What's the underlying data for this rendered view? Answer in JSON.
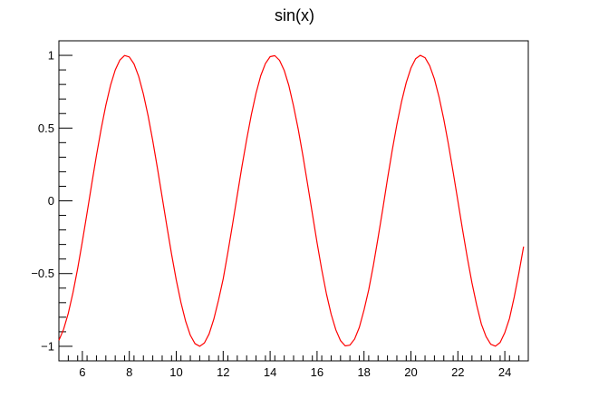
{
  "chart_data": {
    "type": "line",
    "title": "sin(x)",
    "xlabel": "",
    "ylabel": "",
    "xlim": [
      5,
      25
    ],
    "ylim": [
      -1.1,
      1.1
    ],
    "grid": false,
    "function": "sin(x)",
    "x_ticks": [
      6,
      8,
      10,
      12,
      14,
      16,
      18,
      20,
      22,
      24
    ],
    "x_tick_labels": [
      "6",
      "8",
      "10",
      "12",
      "14",
      "16",
      "18",
      "20",
      "22",
      "24"
    ],
    "y_ticks": [
      -1,
      -0.5,
      0,
      0.5,
      1
    ],
    "y_tick_labels": [
      "−1",
      "−0.5",
      "0",
      "0.5",
      "1"
    ],
    "series": [
      {
        "color": "#ff0000",
        "x": [
          5.0,
          5.2,
          5.4,
          5.6,
          5.8,
          6.0,
          6.2,
          6.4,
          6.6,
          6.8,
          7.0,
          7.2,
          7.4,
          7.6,
          7.8,
          8.0,
          8.2,
          8.4,
          8.6,
          8.8,
          9.0,
          9.2,
          9.4,
          9.6,
          9.8,
          10.0,
          10.2,
          10.4,
          10.6,
          10.8,
          11.0,
          11.2,
          11.4,
          11.6,
          11.8,
          12.0,
          12.2,
          12.4,
          12.6,
          12.8,
          13.0,
          13.2,
          13.4,
          13.6,
          13.8,
          14.0,
          14.2,
          14.4,
          14.6,
          14.8,
          15.0,
          15.2,
          15.4,
          15.6,
          15.8,
          16.0,
          16.2,
          16.4,
          16.6,
          16.8,
          17.0,
          17.2,
          17.4,
          17.6,
          17.8,
          18.0,
          18.2,
          18.4,
          18.6,
          18.8,
          19.0,
          19.2,
          19.4,
          19.6,
          19.8,
          20.0,
          20.2,
          20.4,
          20.6,
          20.8,
          21.0,
          21.2,
          21.4,
          21.6,
          21.8,
          22.0,
          22.2,
          22.4,
          22.6,
          22.8,
          23.0,
          23.2,
          23.4,
          23.6,
          23.8,
          24.0,
          24.2,
          24.4,
          24.6,
          24.8
        ],
        "y": [
          -0.959,
          -0.883,
          -0.773,
          -0.631,
          -0.465,
          -0.279,
          -0.083,
          0.117,
          0.312,
          0.494,
          0.657,
          0.794,
          0.899,
          0.968,
          0.999,
          0.989,
          0.941,
          0.855,
          0.734,
          0.585,
          0.412,
          0.223,
          0.025,
          -0.174,
          -0.366,
          -0.544,
          -0.699,
          -0.828,
          -0.924,
          -0.982,
          -1.0,
          -0.977,
          -0.915,
          -0.814,
          -0.683,
          -0.537,
          -0.354,
          -0.161,
          0.039,
          0.237,
          0.421,
          0.592,
          0.74,
          0.86,
          0.944,
          0.991,
          0.998,
          0.966,
          0.897,
          0.791,
          0.65,
          0.49,
          0.307,
          0.111,
          -0.089,
          -0.288,
          -0.474,
          -0.64,
          -0.779,
          -0.887,
          -0.961,
          -0.997,
          -0.992,
          -0.95,
          -0.87,
          -0.751,
          -0.612,
          -0.443,
          -0.253,
          -0.056,
          0.15,
          0.345,
          0.524,
          0.682,
          0.813,
          0.913,
          0.977,
          1.0,
          0.984,
          0.928,
          0.837,
          0.712,
          0.56,
          0.386,
          0.196,
          -0.001,
          -0.199,
          -0.389,
          -0.564,
          -0.716,
          -0.847,
          -0.933,
          -0.986,
          -0.999,
          -0.974,
          -0.906,
          -0.808,
          -0.662,
          -0.496,
          -0.315
        ]
      }
    ]
  }
}
